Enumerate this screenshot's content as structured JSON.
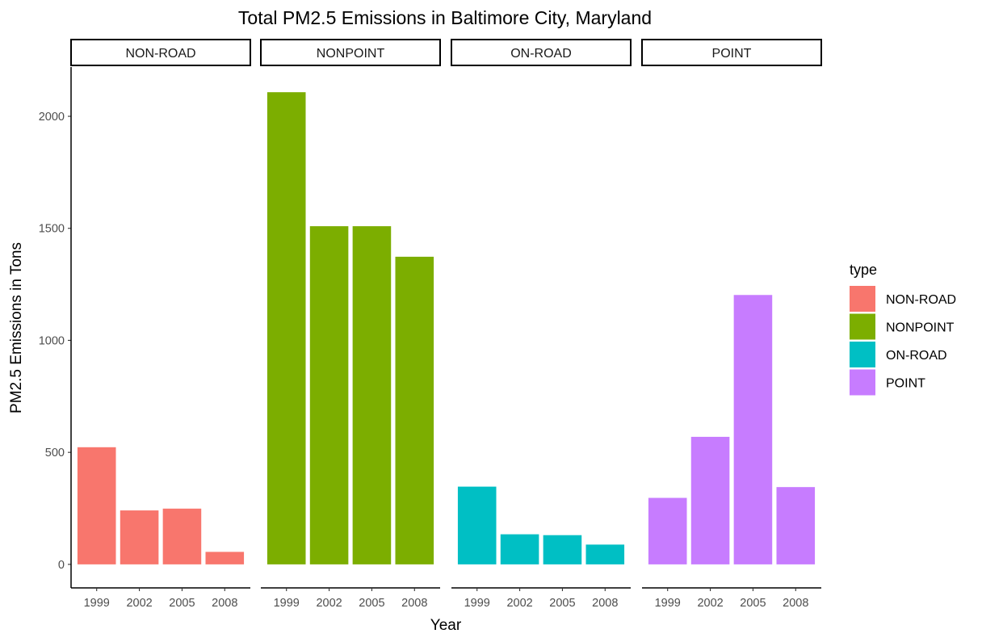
{
  "chart_data": {
    "type": "bar",
    "title": "Total PM2.5 Emissions in Baltimore City, Maryland",
    "xlabel": "Year",
    "ylabel": "PM2.5 Emissions in Tons",
    "ylim": [
      -105,
      2220
    ],
    "yticks": [
      0,
      500,
      1000,
      1500,
      2000
    ],
    "categories": [
      "1999",
      "2002",
      "2005",
      "2008"
    ],
    "grid": false,
    "legend": {
      "title": "type",
      "placement": "right",
      "entries": [
        "NON-ROAD",
        "NONPOINT",
        "ON-ROAD",
        "POINT"
      ]
    },
    "facets": [
      {
        "name": "NON-ROAD",
        "color": "#F8766D",
        "values": [
          522.9,
          240.8,
          248.9,
          55.8
        ]
      },
      {
        "name": "NONPOINT",
        "color": "#7CAE00",
        "values": [
          2107.6,
          1509.5,
          1509.5,
          1373.2
        ]
      },
      {
        "name": "ON-ROAD",
        "color": "#00BFC4",
        "values": [
          347.0,
          134.3,
          130.4,
          88.3
        ]
      },
      {
        "name": "POINT",
        "color": "#C77CFF",
        "values": [
          296.8,
          569.3,
          1202.5,
          345.0
        ]
      }
    ]
  }
}
